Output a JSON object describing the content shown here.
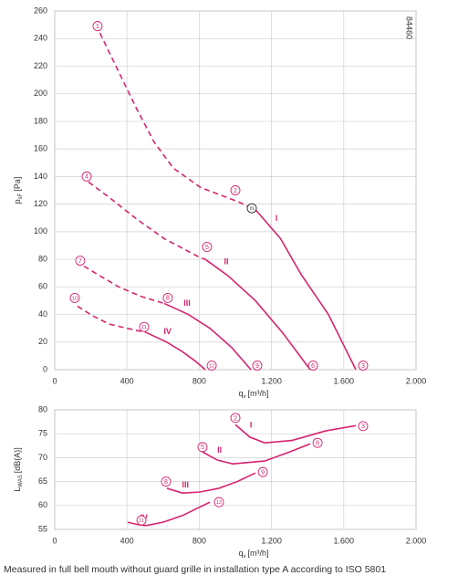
{
  "chart_data": [
    {
      "type": "line",
      "ylabel": {
        "main": "p",
        "sub": "sF",
        "unit": "[Pa]"
      },
      "xlabel": {
        "main": "q",
        "sub": "v",
        "unit": "[m³/h]"
      },
      "code": "84460",
      "xlim": [
        0,
        2000
      ],
      "ylim": [
        0,
        260
      ],
      "xticks": [
        0,
        400,
        800,
        {
          "value": 1200,
          "label": "1.200"
        },
        {
          "value": 1600,
          "label": "1.600"
        },
        {
          "value": 2000,
          "label": "2.000"
        }
      ],
      "yticks": [
        0,
        20,
        40,
        60,
        80,
        100,
        120,
        140,
        160,
        180,
        200,
        220,
        240,
        260
      ],
      "grid": true,
      "series": [
        {
          "name": "I",
          "color": "#d6246e",
          "dashed": {
            "x": [
              250,
              450,
              550,
              657,
              808,
              1010,
              1111
            ],
            "values": [
              244,
              190,
              165,
              146,
              132,
              122,
              116
            ]
          },
          "x": [
            1111,
            1250,
            1364,
            1515,
            1667
          ],
          "values": [
            116,
            95,
            69,
            40,
            0
          ]
        },
        {
          "name": "II",
          "color": "#d6246e",
          "dashed": {
            "x": [
              187,
              300,
              455,
              606,
              808,
              833
            ],
            "values": [
              136,
              125,
              109,
              95,
              81,
              80
            ]
          },
          "x": [
            833,
            960,
            1111,
            1260,
            1414
          ],
          "values": [
            80,
            68,
            50,
            27,
            0
          ]
        },
        {
          "name": "III",
          "color": "#d6246e",
          "dashed": {
            "x": [
              162,
              250,
              354,
              480,
              606
            ],
            "values": [
              75,
              68,
              60,
              53,
              48
            ]
          },
          "x": [
            606,
            740,
            859,
            980,
            1086
          ],
          "values": [
            48,
            40,
            30,
            16,
            0
          ]
        },
        {
          "name": "IV",
          "color": "#d6246e",
          "dashed": {
            "x": [
              126,
              210,
              303,
              400,
              505
            ],
            "values": [
              46,
              39,
              33,
              30,
              27
            ]
          },
          "x": [
            505,
            620,
            707,
            780,
            833
          ],
          "values": [
            27,
            20,
            13,
            6,
            0
          ]
        }
      ],
      "points": [
        {
          "label": "1",
          "x": 237,
          "y": 249
        },
        {
          "label": "2",
          "x": 1000,
          "y": 130
        },
        {
          "label": "3",
          "x": 1707,
          "y": 3
        },
        {
          "label": "4",
          "x": 177,
          "y": 140
        },
        {
          "label": "5",
          "x": 843,
          "y": 89
        },
        {
          "label": "6",
          "x": 1430,
          "y": 3
        },
        {
          "label": "7",
          "x": 141,
          "y": 79
        },
        {
          "label": "8",
          "x": 626,
          "y": 52
        },
        {
          "label": "9",
          "x": 1121,
          "y": 3
        },
        {
          "label": "10",
          "x": 111,
          "y": 52
        },
        {
          "label": "11",
          "x": 495,
          "y": 31
        },
        {
          "label": "12",
          "x": 869,
          "y": 3
        },
        {
          "label": "n",
          "x": 1091,
          "y": 117
        }
      ]
    },
    {
      "type": "line",
      "ylabel": {
        "main": "L",
        "sub": "WAS",
        "unit": "[dB(A)]"
      },
      "xlabel": {
        "main": "q",
        "sub": "v",
        "unit": "[m³/h]"
      },
      "xlim": [
        0,
        2000
      ],
      "ylim": [
        55,
        80
      ],
      "xticks": [
        0,
        400,
        800,
        {
          "value": 1200,
          "label": "1.200"
        },
        {
          "value": 1600,
          "label": "1.600"
        },
        {
          "value": 2000,
          "label": "2.000"
        }
      ],
      "yticks": [
        55,
        60,
        65,
        70,
        75,
        80
      ],
      "grid": true,
      "series": [
        {
          "name": "I",
          "color": "#d6246e",
          "x": [
            1000,
            1080,
            1162,
            1313,
            1500,
            1667
          ],
          "values": [
            76.9,
            74.3,
            73.1,
            73.6,
            75.6,
            76.7
          ]
        },
        {
          "name": "II",
          "color": "#d6246e",
          "x": [
            818,
            900,
            985,
            1162,
            1300,
            1414
          ],
          "values": [
            71.2,
            69.5,
            68.7,
            69.3,
            71.2,
            72.9
          ]
        },
        {
          "name": "III",
          "color": "#d6246e",
          "x": [
            621,
            707,
            800,
            909,
            1010,
            1111
          ],
          "values": [
            63.6,
            62.6,
            62.8,
            63.6,
            65.0,
            66.8
          ]
        },
        {
          "name": "IV",
          "color": "#d6246e",
          "x": [
            404,
            460,
            505,
            600,
            707,
            859
          ],
          "values": [
            56.5,
            56.0,
            55.8,
            56.5,
            57.9,
            60.7
          ]
        }
      ],
      "points": [
        {
          "label": "2",
          "x": 1000,
          "y": 78.3
        },
        {
          "label": "3",
          "x": 1707,
          "y": 76.6
        },
        {
          "label": "5",
          "x": 818,
          "y": 72.2
        },
        {
          "label": "6",
          "x": 1455,
          "y": 73.1
        },
        {
          "label": "8",
          "x": 616,
          "y": 65.0
        },
        {
          "label": "9",
          "x": 1152,
          "y": 67.0
        },
        {
          "label": "11",
          "x": 480,
          "y": 56.9
        },
        {
          "label": "12",
          "x": 909,
          "y": 60.7
        }
      ]
    }
  ],
  "footer": "Measured in full bell mouth without guard grille in installation type A according to ISO 5801"
}
